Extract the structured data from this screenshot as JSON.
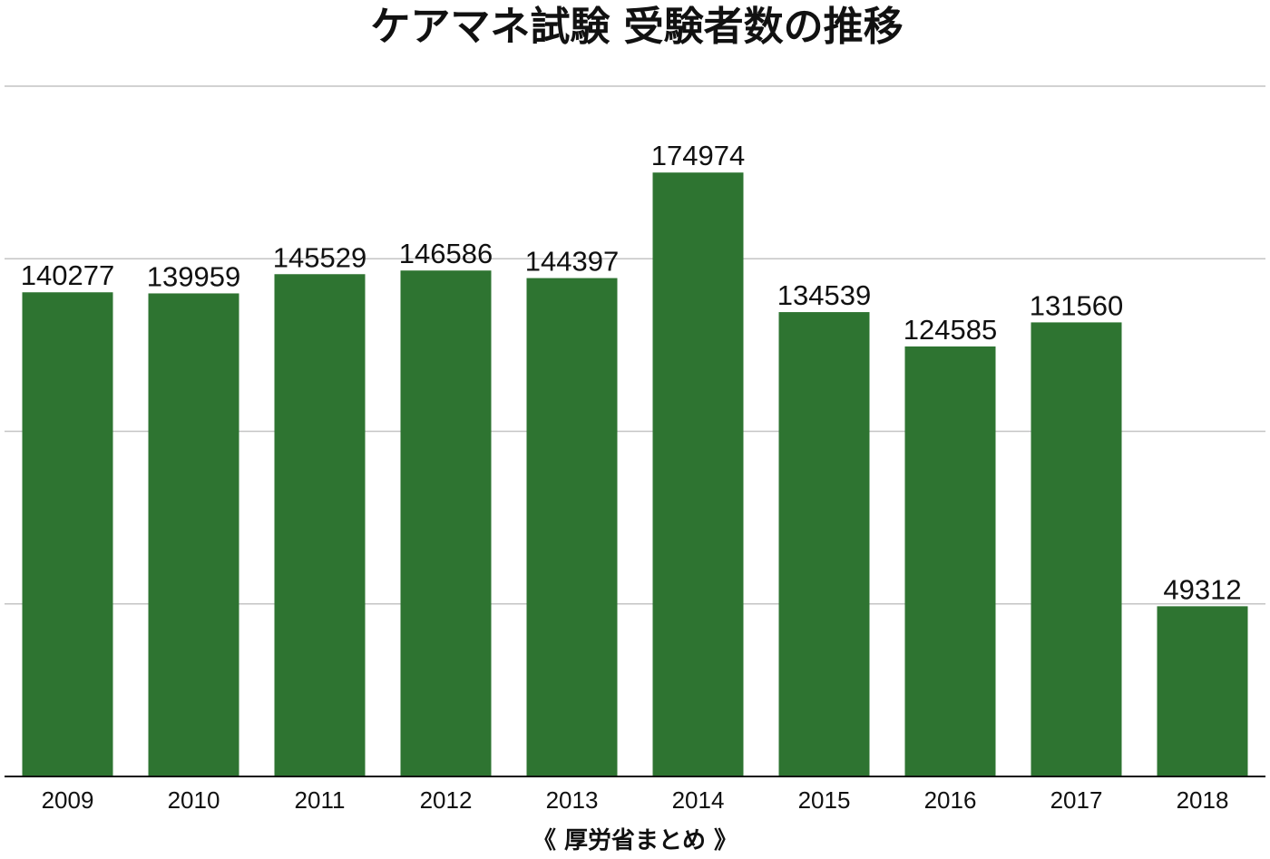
{
  "chart_data": {
    "type": "bar",
    "title": "ケアマネ試験 受験者数の推移",
    "xlabel": "《 厚労省まとめ 》",
    "ylabel": "",
    "categories": [
      "2009",
      "2010",
      "2011",
      "2012",
      "2013",
      "2014",
      "2015",
      "2016",
      "2017",
      "2018"
    ],
    "values": [
      140277,
      139959,
      145529,
      146586,
      144397,
      174974,
      134539,
      124585,
      131560,
      49312
    ],
    "ylim": [
      0,
      200000
    ],
    "grid": true,
    "legend": "none",
    "bar_color": "#2e7431",
    "grid_color": "#c4c4c4",
    "axis_color": "#111111"
  }
}
